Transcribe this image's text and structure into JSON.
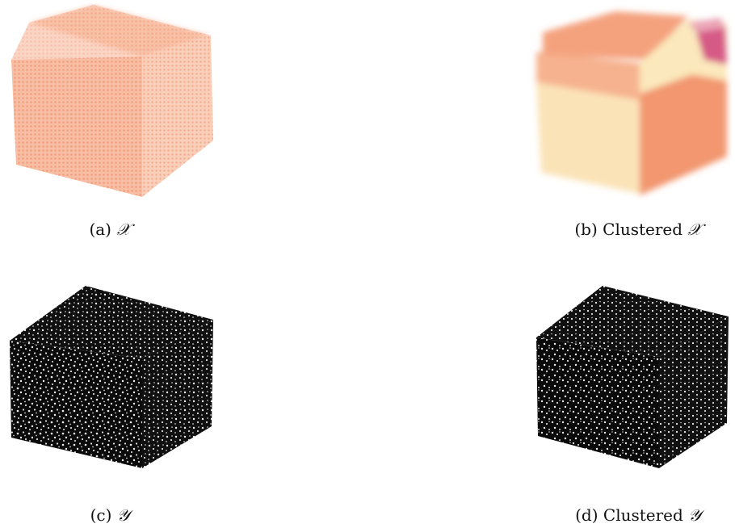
{
  "figure": {
    "panels": [
      {
        "label": "(a)",
        "text": "",
        "symbol": "𝒳"
      },
      {
        "label": "(b)",
        "text": "Clustered",
        "symbol": "𝒳"
      },
      {
        "label": "(c)",
        "text": "",
        "symbol": "𝒴"
      },
      {
        "label": "(d)",
        "text": "Clustered",
        "symbol": "𝒴"
      }
    ]
  },
  "colors": {
    "cube_x": "#f3a07a",
    "cube_x_light": "#fbd6c0",
    "cluster_pale": "#fbe6b8",
    "cluster_orange": "#f39a76",
    "cluster_magenta": "#d6527c",
    "dark": "#0a0a0a",
    "speck": "#e8e8e8"
  }
}
